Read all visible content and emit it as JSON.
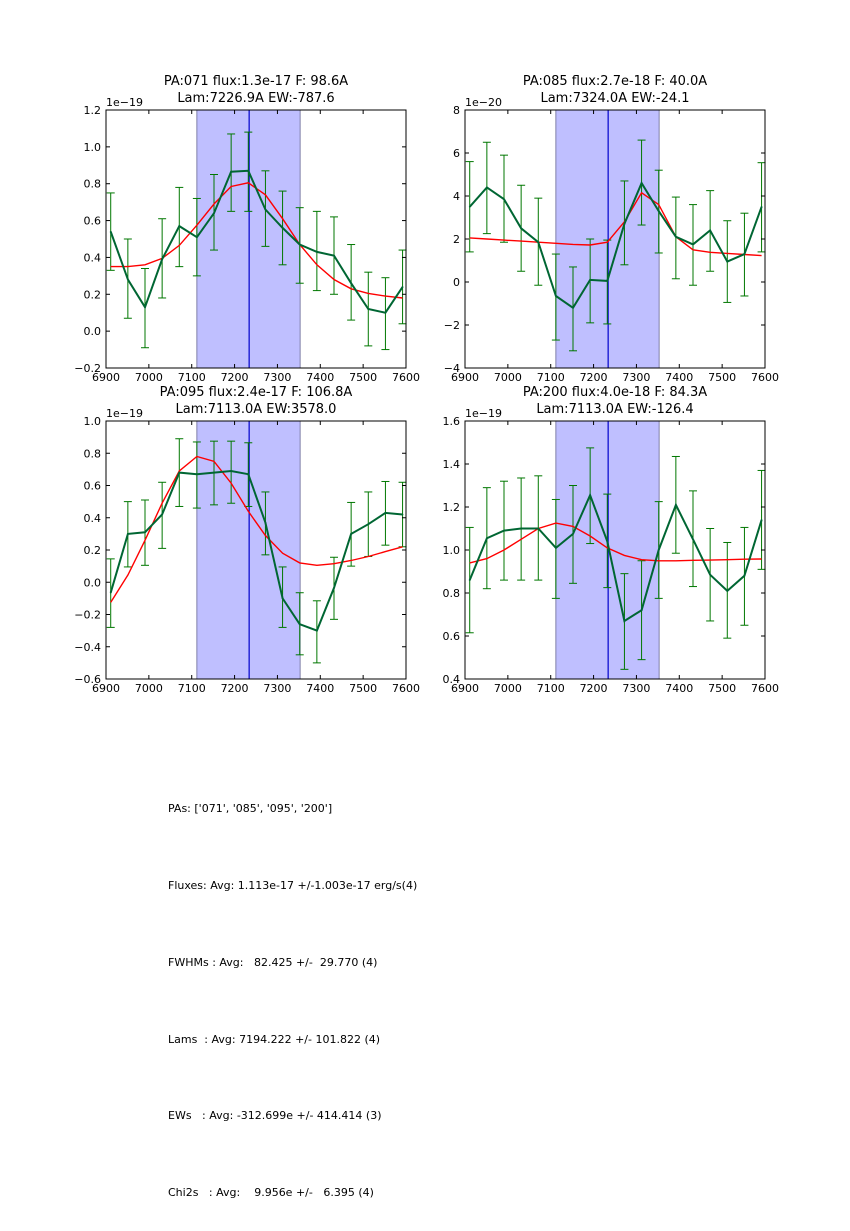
{
  "chart_data": [
    {
      "type": "line",
      "title": [
        "PA:071 flux:1.3e-17 F: 98.6A",
        "Lam:7226.9A EW:-787.6"
      ],
      "xlabel": "",
      "ylabel": "",
      "xlim": [
        6900,
        7600
      ],
      "ylim": [
        -0.2,
        1.2
      ],
      "y_scale_label": "1e−19",
      "xticks": [
        6900,
        7000,
        7100,
        7200,
        7300,
        7400,
        7500,
        7600
      ],
      "yticks": [
        -0.2,
        0.0,
        0.2,
        0.4,
        0.6,
        0.8,
        1.0,
        1.2
      ],
      "ytick_labels": [
        "−0.2",
        "0.0",
        "0.2",
        "0.4",
        "0.6",
        "0.8",
        "1.0",
        "1.2"
      ],
      "shaded_region": [
        7112,
        7353
      ],
      "vline": 7234,
      "x": [
        6911,
        6951,
        6991,
        7031,
        7071,
        7112,
        7152,
        7192,
        7232,
        7272,
        7312,
        7352,
        7392,
        7432,
        7472,
        7512,
        7552,
        7592
      ],
      "series": [
        {
          "name": "data",
          "color": "#006633",
          "values": [
            0.54,
            0.28,
            0.13,
            0.39,
            0.57,
            0.51,
            0.64,
            0.865,
            0.87,
            0.66,
            0.56,
            0.47,
            0.43,
            0.41,
            0.26,
            0.12,
            0.1,
            0.24
          ],
          "err_low": [
            0.33,
            0.07,
            -0.09,
            0.18,
            0.35,
            0.3,
            0.44,
            0.65,
            0.65,
            0.46,
            0.36,
            0.26,
            0.22,
            0.2,
            0.06,
            -0.08,
            -0.1,
            0.04
          ],
          "err_high": [
            0.75,
            0.5,
            0.34,
            0.61,
            0.78,
            0.72,
            0.85,
            1.07,
            1.08,
            0.87,
            0.76,
            0.67,
            0.65,
            0.62,
            0.47,
            0.32,
            0.29,
            0.44
          ]
        },
        {
          "name": "fit",
          "color": "#ff0000",
          "values": [
            0.35,
            0.35,
            0.36,
            0.395,
            0.465,
            0.575,
            0.69,
            0.785,
            0.805,
            0.74,
            0.61,
            0.47,
            0.36,
            0.28,
            0.23,
            0.205,
            0.19,
            0.18
          ]
        }
      ]
    },
    {
      "type": "line",
      "title": [
        "PA:085 flux:2.7e-18 F: 40.0A",
        "Lam:7324.0A EW:-24.1"
      ],
      "xlabel": "",
      "ylabel": "",
      "xlim": [
        6900,
        7600
      ],
      "ylim": [
        -4,
        8
      ],
      "y_scale_label": "1e−20",
      "xticks": [
        6900,
        7000,
        7100,
        7200,
        7300,
        7400,
        7500,
        7600
      ],
      "yticks": [
        -4,
        -2,
        0,
        2,
        4,
        6,
        8
      ],
      "ytick_labels": [
        "−4",
        "−2",
        "0",
        "2",
        "4",
        "6",
        "8"
      ],
      "shaded_region": [
        7112,
        7353
      ],
      "vline": 7234,
      "x": [
        6911,
        6951,
        6991,
        7031,
        7071,
        7112,
        7152,
        7192,
        7232,
        7272,
        7312,
        7352,
        7392,
        7432,
        7472,
        7512,
        7552,
        7592
      ],
      "series": [
        {
          "name": "data",
          "color": "#006633",
          "values": [
            3.5,
            4.4,
            3.85,
            2.5,
            1.85,
            -0.65,
            -1.2,
            0.1,
            0.05,
            2.7,
            4.6,
            3.3,
            2.1,
            1.75,
            2.4,
            0.95,
            1.3,
            3.5
          ],
          "err_low": [
            1.4,
            2.25,
            1.85,
            0.5,
            -0.15,
            -2.7,
            -3.2,
            -1.9,
            -1.95,
            0.8,
            2.65,
            1.35,
            0.15,
            -0.15,
            0.5,
            -0.95,
            -0.65,
            1.4
          ],
          "err_high": [
            5.6,
            6.5,
            5.9,
            4.5,
            3.9,
            1.3,
            0.7,
            2.0,
            1.95,
            4.7,
            6.6,
            5.2,
            3.95,
            3.6,
            4.25,
            2.85,
            3.2,
            5.55
          ]
        },
        {
          "name": "fit",
          "color": "#ff0000",
          "values": [
            2.05,
            2.0,
            1.95,
            1.9,
            1.85,
            1.8,
            1.75,
            1.72,
            1.85,
            2.8,
            4.15,
            3.6,
            2.1,
            1.5,
            1.38,
            1.33,
            1.28,
            1.23
          ]
        }
      ]
    },
    {
      "type": "line",
      "title": [
        "PA:095 flux:2.4e-17 F: 106.8A",
        "Lam:7113.0A EW:3578.0"
      ],
      "xlabel": "",
      "ylabel": "",
      "xlim": [
        6900,
        7600
      ],
      "ylim": [
        -0.6,
        1.0
      ],
      "y_scale_label": "1e−19",
      "xticks": [
        6900,
        7000,
        7100,
        7200,
        7300,
        7400,
        7500,
        7600
      ],
      "yticks": [
        -0.6,
        -0.4,
        -0.2,
        0.0,
        0.2,
        0.4,
        0.6,
        0.8,
        1.0
      ],
      "ytick_labels": [
        "−0.6",
        "−0.4",
        "−0.2",
        "0.0",
        "0.2",
        "0.4",
        "0.6",
        "0.8",
        "1.0"
      ],
      "shaded_region": [
        7112,
        7353
      ],
      "vline": 7234,
      "x": [
        6911,
        6951,
        6991,
        7031,
        7071,
        7112,
        7152,
        7192,
        7232,
        7272,
        7312,
        7352,
        7392,
        7432,
        7472,
        7512,
        7552,
        7592
      ],
      "series": [
        {
          "name": "data",
          "color": "#006633",
          "values": [
            -0.065,
            0.3,
            0.31,
            0.42,
            0.68,
            0.67,
            0.68,
            0.69,
            0.67,
            0.37,
            -0.1,
            -0.26,
            -0.3,
            -0.035,
            0.3,
            0.36,
            0.43,
            0.42
          ],
          "err_low": [
            -0.28,
            0.095,
            0.105,
            0.21,
            0.47,
            0.46,
            0.48,
            0.49,
            0.47,
            0.17,
            -0.28,
            -0.45,
            -0.5,
            -0.23,
            0.1,
            0.16,
            0.23,
            0.22
          ],
          "err_high": [
            0.145,
            0.5,
            0.51,
            0.62,
            0.89,
            0.87,
            0.875,
            0.875,
            0.865,
            0.56,
            0.095,
            -0.065,
            -0.115,
            0.155,
            0.495,
            0.56,
            0.625,
            0.62
          ]
        },
        {
          "name": "fit",
          "color": "#ff0000",
          "values": [
            -0.125,
            0.045,
            0.26,
            0.49,
            0.69,
            0.78,
            0.75,
            0.615,
            0.44,
            0.29,
            0.18,
            0.12,
            0.105,
            0.115,
            0.135,
            0.16,
            0.19,
            0.22
          ]
        }
      ]
    },
    {
      "type": "line",
      "title": [
        "PA:200 flux:4.0e-18 F: 84.3A",
        "Lam:7113.0A EW:-126.4"
      ],
      "xlabel": "",
      "ylabel": "",
      "xlim": [
        6900,
        7600
      ],
      "ylim": [
        0.4,
        1.6
      ],
      "y_scale_label": "1e−19",
      "xticks": [
        6900,
        7000,
        7100,
        7200,
        7300,
        7400,
        7500,
        7600
      ],
      "yticks": [
        0.4,
        0.6,
        0.8,
        1.0,
        1.2,
        1.4,
        1.6
      ],
      "ytick_labels": [
        "0.4",
        "0.6",
        "0.8",
        "1.0",
        "1.2",
        "1.4",
        "1.6"
      ],
      "shaded_region": [
        7112,
        7353
      ],
      "vline": 7234,
      "x": [
        6911,
        6951,
        6991,
        7031,
        7071,
        7112,
        7152,
        7192,
        7232,
        7272,
        7312,
        7352,
        7392,
        7432,
        7472,
        7512,
        7552,
        7592
      ],
      "series": [
        {
          "name": "data",
          "color": "#006633",
          "values": [
            0.86,
            1.055,
            1.09,
            1.1,
            1.1,
            1.01,
            1.075,
            1.255,
            1.04,
            0.67,
            0.72,
            1.0,
            1.21,
            1.05,
            0.885,
            0.81,
            0.88,
            1.14
          ],
          "err_low": [
            0.615,
            0.82,
            0.86,
            0.86,
            0.86,
            0.775,
            0.845,
            1.03,
            0.825,
            0.445,
            0.49,
            0.775,
            0.985,
            0.83,
            0.67,
            0.59,
            0.65,
            0.91
          ],
          "err_high": [
            1.105,
            1.29,
            1.32,
            1.335,
            1.345,
            1.235,
            1.3,
            1.475,
            1.26,
            0.89,
            0.95,
            1.225,
            1.435,
            1.275,
            1.1,
            1.035,
            1.105,
            1.37
          ]
        },
        {
          "name": "fit",
          "color": "#ff0000",
          "values": [
            0.94,
            0.96,
            1.0,
            1.05,
            1.1,
            1.125,
            1.11,
            1.065,
            1.01,
            0.975,
            0.955,
            0.95,
            0.95,
            0.952,
            0.953,
            0.955,
            0.957,
            0.958
          ]
        }
      ]
    }
  ],
  "colors": {
    "data_line": "#006633",
    "error_bar": "#007700",
    "fit_line": "#ff0000",
    "shade": "#bfbfff",
    "vline": "#0000cc"
  },
  "stats": {
    "lines": [
      "PAs: ['071', '085', '095', '200']",
      "Fluxes: Avg: 1.113e-17 +/-1.003e-17 erg/s(4)",
      "FWHMs : Avg:   82.425 +/-  29.770 (4)",
      "Lams  : Avg: 7194.222 +/- 101.822 (4)",
      "EWs   : Avg: -312.699e +/- 414.414 (3)",
      "Chi2s   : Avg:    9.956e +/-   6.395 (4)"
    ]
  }
}
